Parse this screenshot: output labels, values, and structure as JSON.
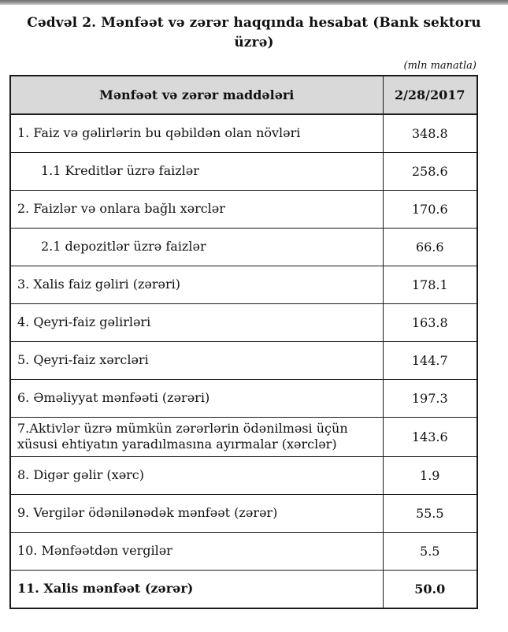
{
  "page": {
    "title": "Cədvəl 2. Mənfəət və zərər haqqında hesabat (Bank sektoru üzrə)",
    "unit_note": "(mln manatla)"
  },
  "table": {
    "header": {
      "items_label": "Mənfəət və zərər maddələri",
      "date_label": "2/28/2017"
    },
    "rows": [
      {
        "label": "1. Faiz və gəlirlərin bu qəbildən olan növləri",
        "value": "348.8",
        "indent": false,
        "bold": false
      },
      {
        "label": "1.1 Kreditlər üzrə faizlər",
        "value": "258.6",
        "indent": true,
        "bold": false
      },
      {
        "label": "2. Faizlər və onlara bağlı xərclər",
        "value": "170.6",
        "indent": false,
        "bold": false
      },
      {
        "label": "2.1 depozitlər üzrə faizlər",
        "value": "66.6",
        "indent": true,
        "bold": false
      },
      {
        "label": "3. Xalis faiz gəliri (zərəri)",
        "value": "178.1",
        "indent": false,
        "bold": false
      },
      {
        "label": "4. Qeyri-faiz gəlirləri",
        "value": "163.8",
        "indent": false,
        "bold": false
      },
      {
        "label": "5. Qeyri-faiz xərcləri",
        "value": "144.7",
        "indent": false,
        "bold": false
      },
      {
        "label": "6. Əməliyyat mənfəəti (zərəri)",
        "value": "197.3",
        "indent": false,
        "bold": false
      },
      {
        "label": "7.Aktivlər üzrə mümkün zərərlərin ödənilməsi üçün xüsusi ehtiyatın yaradılmasına ayırmalar (xərclər)",
        "value": "143.6",
        "indent": false,
        "bold": false
      },
      {
        "label": "8. Digər gəlir (xərc)",
        "value": "1.9",
        "indent": false,
        "bold": false
      },
      {
        "label": "9. Vergilər ödənilənədək mənfəət (zərər)",
        "value": "55.5",
        "indent": false,
        "bold": false
      },
      {
        "label": "10. Mənfəətdən vergilər",
        "value": "5.5",
        "indent": false,
        "bold": false
      },
      {
        "label": "11. Xalis mənfəət (zərər)",
        "value": "50.0",
        "indent": false,
        "bold": true
      }
    ]
  },
  "colors": {
    "header_bg": "#d9d9d9",
    "border": "#1a1a1a",
    "top_bar_dark": "#6f6f6f",
    "top_bar_light": "#c6c6c6",
    "text": "#111111",
    "page_bg": "#ffffff"
  }
}
